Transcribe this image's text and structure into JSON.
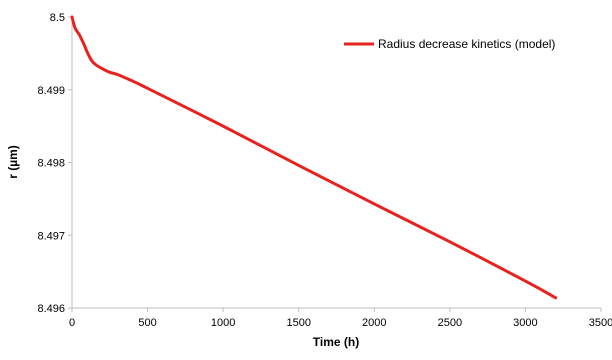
{
  "chart_data": {
    "type": "line",
    "xlabel": "Time (h)",
    "ylabel": "r (µm)",
    "xlim": [
      0,
      3500
    ],
    "ylim": [
      8.496,
      8.5
    ],
    "x_ticks": [
      "0",
      "500",
      "1000",
      "1500",
      "2000",
      "2500",
      "3000",
      "3500"
    ],
    "y_ticks": [
      "8.496",
      "8.497",
      "8.498",
      "8.499",
      "8.5"
    ],
    "grid": false,
    "legend_position": "top-right",
    "series": [
      {
        "name": "Radius decrease kinetics (model)",
        "color": "#e8231f",
        "x": [
          0,
          20,
          50,
          80,
          100,
          130,
          160,
          200,
          250,
          300,
          400,
          500,
          1000,
          1500,
          2000,
          2500,
          3000,
          3200
        ],
        "y": [
          8.5,
          8.49985,
          8.49975,
          8.49962,
          8.49952,
          8.4994,
          8.49934,
          8.49929,
          8.49924,
          8.49921,
          8.49912,
          8.49902,
          8.4985,
          8.49796,
          8.49743,
          8.49691,
          8.49637,
          8.49614
        ]
      }
    ]
  }
}
